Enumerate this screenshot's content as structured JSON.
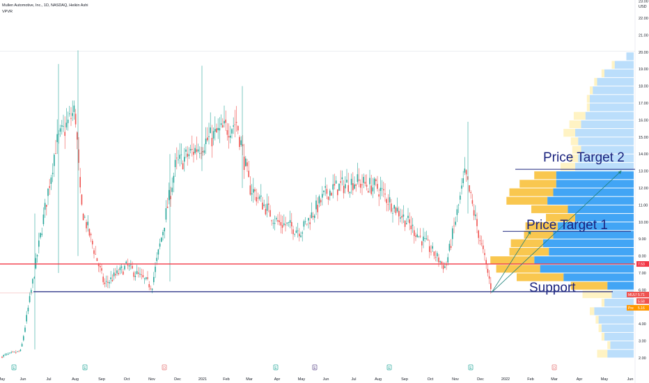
{
  "legend": {
    "symbol_line": "Mullen Automotive, Inc., 1D, NASDAQ, Heikin Ashi",
    "indicator": "VPVR"
  },
  "colors": {
    "up": "#26a69a",
    "down": "#ef5350",
    "resistance": "#f23645",
    "support": "#1a237e",
    "target_line": "#1a237e",
    "arrow": "#1b7f79",
    "vp_up": "#42a5f5",
    "vp_down": "#f9c74f",
    "vp_up_light": "#bbdefb",
    "vp_down_light": "#fff3c4",
    "gridline": "#e0e3eb"
  },
  "chart_data": {
    "type": "candlestick",
    "y_axis": {
      "currency": "USD",
      "ticks": [
        "2.00",
        "3.00",
        "4.00",
        "5.00",
        "6.00",
        "7.00",
        "8.00",
        "9.00",
        "10.00",
        "11.00",
        "12.00",
        "13.00",
        "14.00",
        "15.00",
        "16.00",
        "17.00",
        "18.00",
        "19.00",
        "20.00",
        "21.00",
        "22.00",
        "23.00"
      ],
      "range": [
        1.55,
        23.3
      ]
    },
    "x_axis": {
      "labels": [
        "May",
        "Jun",
        "Jul",
        "Aug",
        "Sep",
        "Oct",
        "Nov",
        "Dec",
        "2021",
        "Feb",
        "Mar",
        "Apr",
        "May",
        "Jun",
        "Jul",
        "Aug",
        "Sep",
        "Oct",
        "Nov",
        "Dec",
        "2022",
        "Feb",
        "Mar",
        "Apr",
        "May",
        "Jun"
      ]
    },
    "price_path": [
      {
        "date": "May",
        "price": 2.1
      },
      {
        "date": "Jun",
        "price": 2.4
      },
      {
        "date": "Jun",
        "price": 7.2
      },
      {
        "date": "Jul",
        "price": 14.5
      },
      {
        "date": "Aug",
        "price": 16.6
      },
      {
        "date": "Aug",
        "price": 11.0
      },
      {
        "date": "Sep",
        "price": 6.3
      },
      {
        "date": "Oct",
        "price": 7.4
      },
      {
        "date": "Nov",
        "price": 6.2
      },
      {
        "date": "Dec",
        "price": 13.3
      },
      {
        "date": "2021",
        "price": 14.7
      },
      {
        "date": "Feb",
        "price": 15.9
      },
      {
        "date": "Mar",
        "price": 12.1
      },
      {
        "date": "Apr",
        "price": 10.0
      },
      {
        "date": "May",
        "price": 9.5
      },
      {
        "date": "Jun",
        "price": 11.8
      },
      {
        "date": "Jul",
        "price": 12.4
      },
      {
        "date": "Aug",
        "price": 12.0
      },
      {
        "date": "Sep",
        "price": 10.2
      },
      {
        "date": "Oct",
        "price": 7.3
      },
      {
        "date": "Nov",
        "price": 12.8
      },
      {
        "date": "Dec",
        "price": 6.0
      }
    ],
    "events": [
      "E",
      "E",
      "D",
      "E",
      "E",
      "E",
      "E",
      "D"
    ],
    "horizontal_lines": [
      {
        "name": "resistance",
        "price": 7.53
      },
      {
        "name": "support",
        "price": 5.9
      }
    ],
    "annotations": [
      {
        "text": "Price Target 2",
        "price": 13.1
      },
      {
        "text": "Price Target 1",
        "price": 9.5
      },
      {
        "text": "Support",
        "price": 5.9
      }
    ],
    "price_labels": [
      {
        "text": "7.53",
        "kind": "line"
      },
      {
        "text": "MULN",
        "kind": "symbol"
      },
      {
        "text": "5.71",
        "kind": "last"
      },
      {
        "text": "5.58",
        "kind": "last"
      },
      {
        "text": "Pre",
        "kind": "pre"
      },
      {
        "text": "5.16",
        "kind": "pre"
      }
    ],
    "volume_profile": [
      {
        "price": 2.25,
        "up": 0.18,
        "down": 0.07,
        "light": true
      },
      {
        "price": 2.75,
        "up": 0.16,
        "down": 0.02,
        "light": true
      },
      {
        "price": 3.25,
        "up": 0.2,
        "down": 0.02,
        "light": true
      },
      {
        "price": 3.75,
        "up": 0.22,
        "down": 0.02,
        "light": true
      },
      {
        "price": 4.25,
        "up": 0.24,
        "down": 0.02,
        "light": true
      },
      {
        "price": 4.75,
        "up": 0.27,
        "down": 0.03,
        "light": true
      },
      {
        "price": 5.25,
        "up": 0.2,
        "down": 0.02,
        "light": true
      },
      {
        "price": 5.75,
        "up": 0.15,
        "down": 0.2,
        "light": true
      },
      {
        "price": 6.25,
        "up": 0.18,
        "down": 0.25,
        "light": false
      },
      {
        "price": 6.75,
        "up": 0.48,
        "down": 0.32,
        "light": false
      },
      {
        "price": 7.25,
        "up": 0.64,
        "down": 0.3,
        "light": false
      },
      {
        "price": 7.75,
        "up": 0.68,
        "down": 0.3,
        "light": false
      },
      {
        "price": 8.25,
        "up": 0.58,
        "down": 0.27,
        "light": false
      },
      {
        "price": 8.75,
        "up": 0.62,
        "down": 0.22,
        "light": false
      },
      {
        "price": 9.25,
        "up": 0.55,
        "down": 0.2,
        "light": false
      },
      {
        "price": 9.75,
        "up": 0.52,
        "down": 0.22,
        "light": false
      },
      {
        "price": 10.25,
        "up": 0.4,
        "down": 0.2,
        "light": false
      },
      {
        "price": 10.75,
        "up": 0.45,
        "down": 0.25,
        "light": false
      },
      {
        "price": 11.25,
        "up": 0.59,
        "down": 0.28,
        "light": false
      },
      {
        "price": 11.75,
        "up": 0.55,
        "down": 0.3,
        "light": false
      },
      {
        "price": 12.25,
        "up": 0.53,
        "down": 0.25,
        "light": false
      },
      {
        "price": 12.75,
        "up": 0.53,
        "down": 0.15,
        "light": false
      },
      {
        "price": 13.25,
        "up": 0.4,
        "down": 0.1,
        "light": true
      },
      {
        "price": 13.75,
        "up": 0.38,
        "down": 0.06,
        "light": true
      },
      {
        "price": 14.25,
        "up": 0.36,
        "down": 0.06,
        "light": true
      },
      {
        "price": 14.75,
        "up": 0.38,
        "down": 0.05,
        "light": true
      },
      {
        "price": 15.25,
        "up": 0.4,
        "down": 0.08,
        "light": true
      },
      {
        "price": 15.75,
        "up": 0.36,
        "down": 0.08,
        "light": true
      },
      {
        "price": 16.25,
        "up": 0.33,
        "down": 0.08,
        "light": true
      },
      {
        "price": 16.75,
        "up": 0.3,
        "down": 0.02,
        "light": true
      },
      {
        "price": 17.25,
        "up": 0.3,
        "down": 0.02,
        "light": true
      },
      {
        "price": 17.75,
        "up": 0.28,
        "down": 0.02,
        "light": true
      },
      {
        "price": 18.25,
        "up": 0.25,
        "down": 0.02,
        "light": true
      },
      {
        "price": 18.75,
        "up": 0.2,
        "down": 0.02,
        "light": true
      },
      {
        "price": 19.25,
        "up": 0.13,
        "down": 0.02,
        "light": true
      },
      {
        "price": 19.75,
        "up": 0.05,
        "down": 0.0,
        "light": true
      }
    ]
  }
}
